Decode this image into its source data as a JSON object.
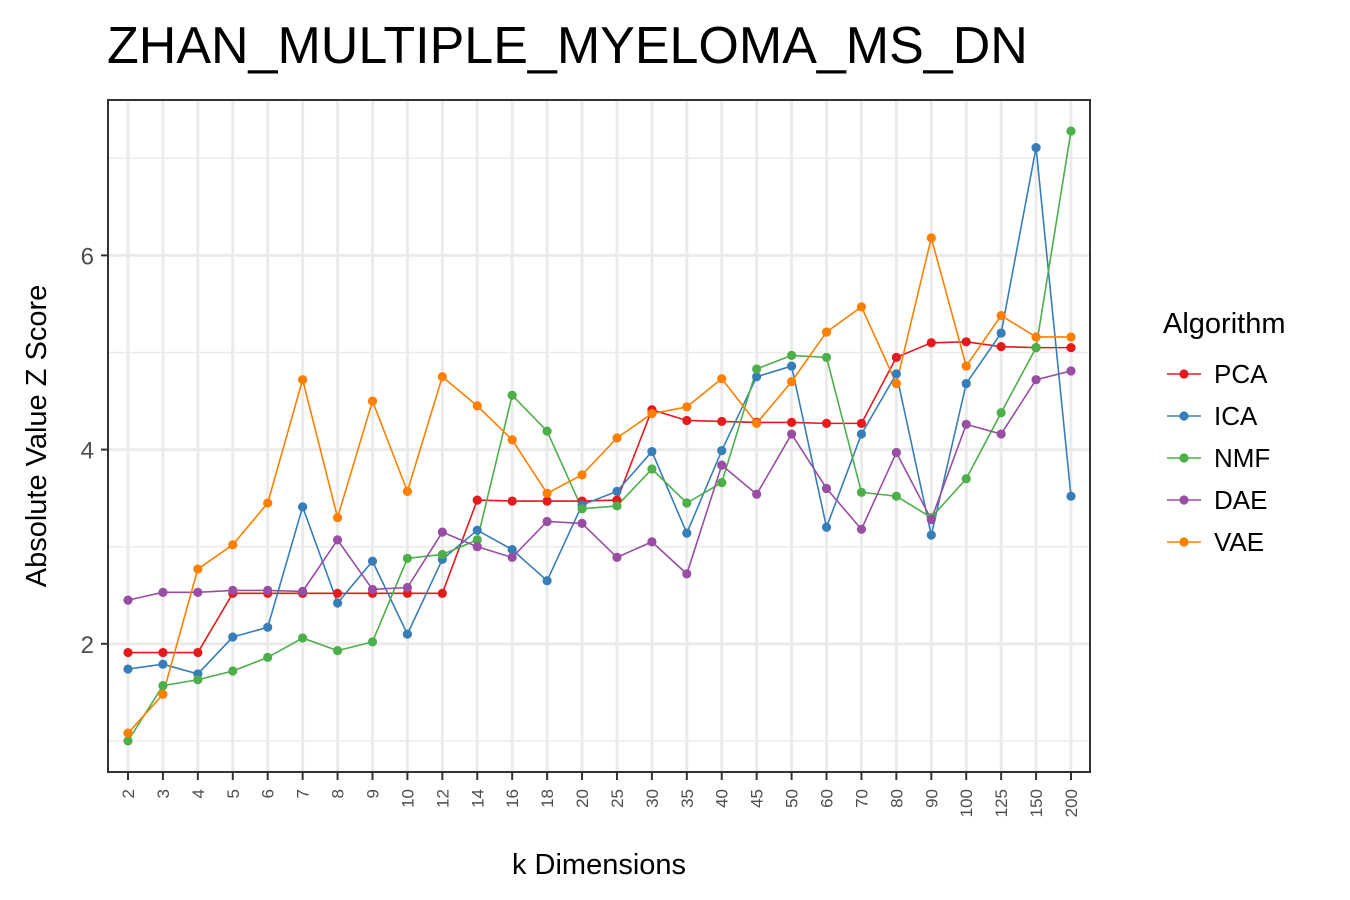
{
  "chart_data": {
    "type": "line",
    "title": "ZHAN_MULTIPLE_MYELOMA_MS_DN",
    "xlabel": "k Dimensions",
    "ylabel": "Absolute Value Z Score",
    "categories": [
      "2",
      "3",
      "4",
      "5",
      "6",
      "7",
      "8",
      "9",
      "10",
      "12",
      "14",
      "16",
      "18",
      "20",
      "25",
      "30",
      "35",
      "40",
      "45",
      "50",
      "60",
      "70",
      "80",
      "90",
      "100",
      "125",
      "150",
      "200"
    ],
    "yticks": [
      "2",
      "4",
      "6"
    ],
    "ylim": [
      0.68,
      7.6
    ],
    "grid": true,
    "legend_title": "Algorithm",
    "legend_position": "right",
    "series": [
      {
        "name": "PCA",
        "color": "#e41a1c",
        "values": [
          1.91,
          1.91,
          1.91,
          2.52,
          2.52,
          2.52,
          2.52,
          2.52,
          2.52,
          2.52,
          3.48,
          3.47,
          3.47,
          3.47,
          3.48,
          4.41,
          4.3,
          4.29,
          4.28,
          4.28,
          4.27,
          4.27,
          4.95,
          5.1,
          5.11,
          5.06,
          5.05,
          5.05
        ]
      },
      {
        "name": "ICA",
        "color": "#377eb8",
        "values": [
          1.74,
          1.79,
          1.69,
          2.07,
          2.17,
          3.41,
          2.42,
          2.85,
          2.1,
          2.87,
          3.17,
          2.97,
          2.65,
          3.43,
          3.57,
          3.98,
          3.14,
          3.99,
          4.75,
          4.86,
          3.2,
          4.16,
          4.78,
          3.12,
          4.68,
          5.2,
          7.11,
          3.52
        ]
      },
      {
        "name": "NMF",
        "color": "#4daf4a",
        "values": [
          1.0,
          1.57,
          1.63,
          1.72,
          1.86,
          2.06,
          1.93,
          2.02,
          2.88,
          2.92,
          3.07,
          4.56,
          4.19,
          3.39,
          3.42,
          3.8,
          3.45,
          3.66,
          4.83,
          4.97,
          4.95,
          3.56,
          3.52,
          3.3,
          3.7,
          4.38,
          5.05,
          7.28
        ]
      },
      {
        "name": "DAE",
        "color": "#984ea3",
        "values": [
          2.45,
          2.53,
          2.53,
          2.55,
          2.55,
          2.54,
          3.07,
          2.56,
          2.58,
          3.15,
          3.0,
          2.89,
          3.26,
          3.24,
          2.89,
          3.05,
          2.72,
          3.84,
          3.54,
          4.16,
          3.6,
          3.18,
          3.97,
          3.28,
          4.26,
          4.16,
          4.72,
          4.81
        ]
      },
      {
        "name": "VAE",
        "color": "#ff7f00",
        "values": [
          1.08,
          1.48,
          2.77,
          3.02,
          3.45,
          4.72,
          3.3,
          4.5,
          3.57,
          4.75,
          4.45,
          4.1,
          3.55,
          3.74,
          4.12,
          4.37,
          4.44,
          4.73,
          4.27,
          4.7,
          5.21,
          5.47,
          4.68,
          6.18,
          4.86,
          5.38,
          5.16,
          5.16
        ]
      }
    ]
  }
}
